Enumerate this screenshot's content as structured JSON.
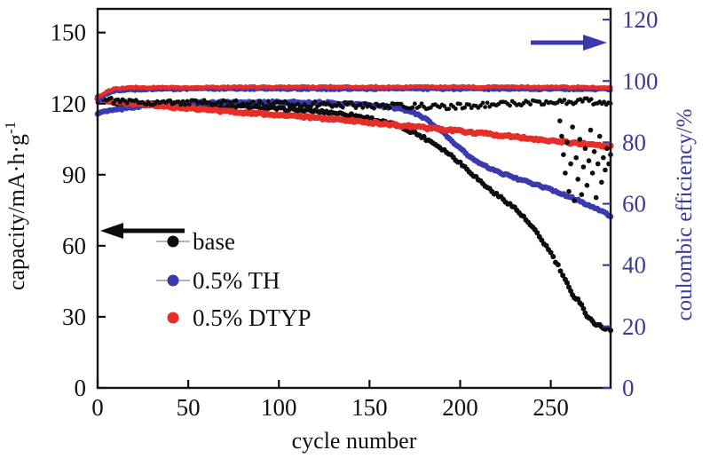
{
  "figure": {
    "xlabel": "cycle number",
    "ylabel_left_main": "capacity/mA·h·g",
    "ylabel_left_sup": "-1",
    "ylabel_right": "coulombic efficiency/%"
  },
  "colors": {
    "base": "#0d0d0d",
    "th": "#3a3ab0",
    "dtyp": "#e62e28",
    "right_axis": "#3c3c96",
    "frame": "#141414"
  },
  "legend": {
    "items": [
      {
        "label": "base",
        "color": "#0d0d0d"
      },
      {
        "label": "0.5% TH",
        "color": "#3a3ab0"
      },
      {
        "label": "0.5% DTYP",
        "color": "#e62e28"
      }
    ]
  },
  "chart_data": {
    "type": "scatter",
    "title": "",
    "xlabel": "cycle number",
    "ylabel_left": "capacity/mA·h·g⁻¹",
    "ylabel_right": "coulombic efficiency/%",
    "x_ticks": [
      0,
      50,
      100,
      150,
      200,
      250
    ],
    "y_left_ticks": [
      0,
      30,
      60,
      90,
      120,
      150
    ],
    "y_right_ticks": [
      0,
      20,
      40,
      60,
      80,
      100,
      120
    ],
    "x_range": [
      0,
      283
    ],
    "y_left_range": [
      0,
      160
    ],
    "y_right_range": [
      0,
      123.5
    ],
    "grid": false,
    "legend_position": "center-left",
    "series": [
      {
        "id": "base-capacity",
        "name": "base",
        "axis": "left",
        "color": "#0d0d0d",
        "marker_r": 3.0,
        "jitter": 0.6,
        "points": [
          [
            0,
            122.5
          ],
          [
            3,
            121.5
          ],
          [
            6,
            120.5
          ],
          [
            10,
            119.5
          ],
          [
            14,
            118.5
          ],
          [
            18,
            119.2
          ],
          [
            22,
            120
          ],
          [
            30,
            120.2
          ],
          [
            40,
            120
          ],
          [
            50,
            119.8
          ],
          [
            60,
            119.5
          ],
          [
            70,
            119.2
          ],
          [
            80,
            118.8
          ],
          [
            90,
            118.3
          ],
          [
            100,
            117.8
          ],
          [
            110,
            117.3
          ],
          [
            120,
            116.8
          ],
          [
            130,
            116.2
          ],
          [
            140,
            115.2
          ],
          [
            150,
            113.8
          ],
          [
            155,
            112.8
          ],
          [
            160,
            111.8
          ],
          [
            165,
            110.8
          ],
          [
            170,
            109.2
          ],
          [
            175,
            107.6
          ],
          [
            180,
            105.6
          ],
          [
            185,
            103.6
          ],
          [
            190,
            101
          ],
          [
            195,
            98.2
          ],
          [
            200,
            95
          ],
          [
            205,
            91.6
          ],
          [
            210,
            88
          ],
          [
            215,
            84.6
          ],
          [
            220,
            81.6
          ],
          [
            225,
            79
          ],
          [
            230,
            76
          ],
          [
            235,
            72
          ],
          [
            240,
            67.5
          ],
          [
            245,
            62.5
          ],
          [
            250,
            57
          ],
          [
            254,
            51.5
          ],
          [
            258,
            45.5
          ],
          [
            261,
            40.5
          ],
          [
            263,
            38.5
          ],
          [
            265,
            37.2
          ],
          [
            267,
            35.5
          ],
          [
            269,
            31.5
          ],
          [
            271,
            29.2
          ],
          [
            274,
            27.5
          ],
          [
            277,
            26.2
          ],
          [
            280,
            25.2
          ],
          [
            283,
            24.5
          ]
        ]
      },
      {
        "id": "th-capacity",
        "name": "0.5% TH",
        "axis": "left",
        "color": "#3a3ab0",
        "marker_r": 3.3,
        "jitter": 0.4,
        "points": [
          [
            0,
            116
          ],
          [
            4,
            116.6
          ],
          [
            8,
            117.1
          ],
          [
            12,
            117.6
          ],
          [
            16,
            118.1
          ],
          [
            20,
            118.6
          ],
          [
            25,
            119.1
          ],
          [
            30,
            119.5
          ],
          [
            40,
            120
          ],
          [
            50,
            120.3
          ],
          [
            60,
            120.5
          ],
          [
            80,
            120.6
          ],
          [
            100,
            120.6
          ],
          [
            120,
            120.5
          ],
          [
            140,
            120
          ],
          [
            150,
            119.5
          ],
          [
            158,
            118.8
          ],
          [
            165,
            118
          ],
          [
            172,
            116.8
          ],
          [
            178,
            115
          ],
          [
            183,
            112.5
          ],
          [
            188,
            109.5
          ],
          [
            193,
            106
          ],
          [
            198,
            102.5
          ],
          [
            203,
            99
          ],
          [
            208,
            96
          ],
          [
            213,
            93.8
          ],
          [
            218,
            92
          ],
          [
            225,
            90
          ],
          [
            232,
            88.2
          ],
          [
            240,
            86.2
          ],
          [
            248,
            84.2
          ],
          [
            256,
            82
          ],
          [
            264,
            79.5
          ],
          [
            272,
            76.8
          ],
          [
            278,
            74.5
          ],
          [
            283,
            72.5
          ]
        ]
      },
      {
        "id": "dtyp-capacity",
        "name": "0.5% DTYP",
        "axis": "left",
        "color": "#e62e28",
        "marker_r": 3.6,
        "jitter": 0.45,
        "points": [
          [
            0,
            122
          ],
          [
            8,
            121
          ],
          [
            16,
            120.3
          ],
          [
            25,
            119.6
          ],
          [
            40,
            118.6
          ],
          [
            55,
            117.7
          ],
          [
            70,
            116.8
          ],
          [
            85,
            116
          ],
          [
            100,
            115.2
          ],
          [
            115,
            114.3
          ],
          [
            130,
            113.4
          ],
          [
            145,
            112.4
          ],
          [
            160,
            111.3
          ],
          [
            175,
            110.2
          ],
          [
            190,
            109.1
          ],
          [
            205,
            108
          ],
          [
            220,
            106.8
          ],
          [
            235,
            105.6
          ],
          [
            250,
            104.4
          ],
          [
            262,
            103.4
          ],
          [
            272,
            102.7
          ],
          [
            283,
            102
          ]
        ]
      },
      {
        "id": "base-efficiency",
        "name": "base efficiency",
        "axis": "right",
        "color": "#0d0d0d",
        "marker_r": 2.4,
        "jitter": 0.9,
        "points": [
          [
            0,
            95
          ],
          [
            5,
            94
          ],
          [
            10,
            93.4
          ],
          [
            20,
            93.1
          ],
          [
            40,
            93
          ],
          [
            60,
            92.9
          ],
          [
            80,
            92.7
          ],
          [
            100,
            92.5
          ],
          [
            120,
            92.4
          ],
          [
            140,
            92.2
          ],
          [
            150,
            92
          ],
          [
            160,
            91.8
          ],
          [
            170,
            92
          ],
          [
            180,
            91.7
          ],
          [
            190,
            91.5
          ],
          [
            200,
            91.8
          ],
          [
            210,
            92
          ],
          [
            220,
            92.3
          ],
          [
            230,
            92.6
          ],
          [
            240,
            93
          ],
          [
            250,
            93.3
          ],
          [
            260,
            93.2
          ],
          [
            270,
            93.5
          ],
          [
            277,
            93
          ],
          [
            283,
            93.2
          ]
        ]
      },
      {
        "id": "th-efficiency",
        "name": "0.5% TH efficiency",
        "axis": "right",
        "color": "#3a3ab0",
        "marker_r": 2.6,
        "jitter": 0.22,
        "points": [
          [
            0,
            93
          ],
          [
            4,
            95.5
          ],
          [
            8,
            96.6
          ],
          [
            15,
            97
          ],
          [
            30,
            97.2
          ],
          [
            60,
            97.3
          ],
          [
            120,
            97.3
          ],
          [
            200,
            97.3
          ],
          [
            283,
            97.2
          ]
        ]
      },
      {
        "id": "dtyp-efficiency",
        "name": "0.5% DTYP efficiency",
        "axis": "right",
        "color": "#e62e28",
        "marker_r": 2.6,
        "jitter": 0.2,
        "points": [
          [
            0,
            94.5
          ],
          [
            5,
            96.5
          ],
          [
            10,
            97.5
          ],
          [
            20,
            97.9
          ],
          [
            60,
            98
          ],
          [
            120,
            98.1
          ],
          [
            200,
            98.1
          ],
          [
            283,
            98
          ]
        ]
      },
      {
        "id": "base-efficiency-scatter",
        "name": "base efficiency end scatter",
        "axis": "right",
        "color": "#0d0d0d",
        "marker_r": 2.8,
        "jitter": 0,
        "interpolate": false,
        "points": [
          [
            255,
            87
          ],
          [
            256,
            82
          ],
          [
            257,
            76
          ],
          [
            258,
            70
          ],
          [
            259,
            80
          ],
          [
            260,
            64
          ],
          [
            261,
            73
          ],
          [
            262,
            85
          ],
          [
            263,
            61
          ],
          [
            264,
            75
          ],
          [
            265,
            68
          ],
          [
            266,
            81
          ],
          [
            267,
            63
          ],
          [
            268,
            72
          ],
          [
            269,
            78
          ],
          [
            270,
            66
          ],
          [
            271,
            74
          ],
          [
            272,
            84
          ],
          [
            273,
            70
          ],
          [
            274,
            77
          ],
          [
            275,
            62
          ],
          [
            276,
            73
          ],
          [
            277,
            82
          ],
          [
            278,
            67
          ],
          [
            279,
            75
          ],
          [
            280,
            71
          ],
          [
            281,
            78
          ],
          [
            282,
            73
          ],
          [
            283,
            76
          ]
        ]
      }
    ]
  }
}
